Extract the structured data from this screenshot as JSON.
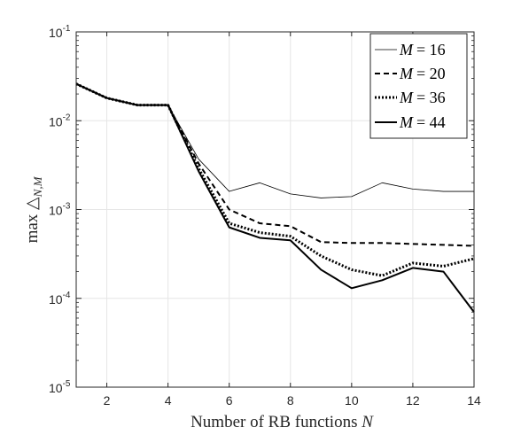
{
  "chart_data": {
    "type": "line",
    "xlabel": "Number of RB functions N",
    "ylabel": "max △N,M",
    "xlim": [
      1,
      14
    ],
    "ylim": [
      1e-05,
      0.1
    ],
    "yscale": "log",
    "grid": true,
    "legend_position": "top-right",
    "x_ticks": [
      2,
      4,
      6,
      8,
      10,
      12,
      14
    ],
    "y_ticks": [
      {
        "value": 1e-05,
        "base": "10",
        "exp": "-5"
      },
      {
        "value": 0.0001,
        "base": "10",
        "exp": "-4"
      },
      {
        "value": 0.001,
        "base": "10",
        "exp": "-3"
      },
      {
        "value": 0.01,
        "base": "10",
        "exp": "-2"
      },
      {
        "value": 0.1,
        "base": "10",
        "exp": "-1"
      }
    ],
    "x": [
      1,
      2,
      3,
      4,
      5,
      6,
      7,
      8,
      9,
      10,
      11,
      12,
      13,
      14
    ],
    "series": [
      {
        "name": "M = 16",
        "style": "thin",
        "values": [
          0.026,
          0.018,
          0.015,
          0.015,
          0.0037,
          0.0016,
          0.002,
          0.0015,
          0.00135,
          0.0014,
          0.002,
          0.0017,
          0.0016,
          0.0016
        ]
      },
      {
        "name": "M = 20",
        "style": "dashed",
        "values": [
          0.026,
          0.018,
          0.015,
          0.015,
          0.0033,
          0.001,
          0.0007,
          0.00065,
          0.00043,
          0.00042,
          0.00042,
          0.00041,
          0.0004,
          0.00039
        ]
      },
      {
        "name": "M = 36",
        "style": "dotted",
        "values": [
          0.026,
          0.018,
          0.015,
          0.015,
          0.0029,
          0.0007,
          0.00055,
          0.0005,
          0.0003,
          0.00021,
          0.00018,
          0.00025,
          0.00023,
          0.00028
        ]
      },
      {
        "name": "M = 44",
        "style": "solid",
        "values": [
          0.026,
          0.018,
          0.015,
          0.015,
          0.0027,
          0.00063,
          0.00048,
          0.00045,
          0.00021,
          0.00013,
          0.00016,
          0.00022,
          0.0002,
          7e-05
        ]
      }
    ]
  },
  "legend": {
    "entries": [
      {
        "var": "M",
        "eq": "= 16"
      },
      {
        "var": "M",
        "eq": "= 20"
      },
      {
        "var": "M",
        "eq": "= 36"
      },
      {
        "var": "M",
        "eq": "= 44"
      }
    ]
  },
  "labels": {
    "xlabel_text": "Number of RB functions ",
    "xlabel_var": "N",
    "ylabel_main": "max △",
    "ylabel_sub": "N,M"
  }
}
